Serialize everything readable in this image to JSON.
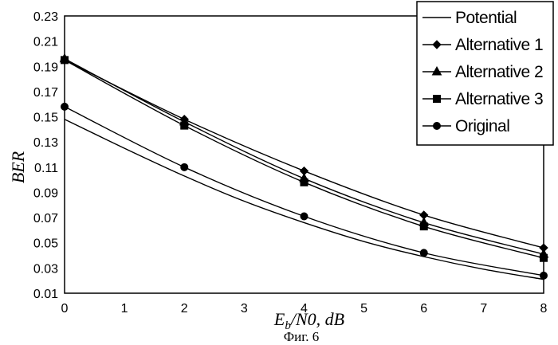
{
  "chart_data": {
    "type": "line",
    "title": "",
    "xlabel_main": "E",
    "xlabel_sub": "b",
    "xlabel_rest": "/N0, dB",
    "ylabel": "BER",
    "caption": "Фиг. 6",
    "xlim": [
      0,
      8
    ],
    "ylim": [
      0.01,
      0.23
    ],
    "xticks": [
      "0",
      "1",
      "2",
      "3",
      "4",
      "5",
      "6",
      "7",
      "8"
    ],
    "yticks": [
      "0.01",
      "0.03",
      "0.05",
      "0.07",
      "0.09",
      "0.11",
      "0.13",
      "0.15",
      "0.17",
      "0.19",
      "0.21",
      "0.23"
    ],
    "grid": true,
    "legend_position": "top-right",
    "series": [
      {
        "name": "Potential",
        "marker": "none",
        "x": [
          0,
          1,
          2,
          3,
          4,
          5,
          6,
          7,
          8
        ],
        "y": [
          0.148,
          0.125,
          0.103,
          0.083,
          0.066,
          0.051,
          0.039,
          0.029,
          0.021
        ]
      },
      {
        "name": "Alternative 1",
        "marker": "diamond",
        "x": [
          0,
          2,
          4,
          6,
          8
        ],
        "y": [
          0.195,
          0.148,
          0.107,
          0.072,
          0.046
        ]
      },
      {
        "name": "Alternative 2",
        "marker": "triangle",
        "x": [
          0,
          2,
          4,
          6,
          8
        ],
        "y": [
          0.196,
          0.146,
          0.101,
          0.066,
          0.041
        ]
      },
      {
        "name": "Alternative 3",
        "marker": "square",
        "x": [
          0,
          2,
          4,
          6,
          8
        ],
        "y": [
          0.195,
          0.143,
          0.098,
          0.063,
          0.038
        ]
      },
      {
        "name": "Original",
        "marker": "circle",
        "x": [
          0,
          2,
          4,
          6,
          8
        ],
        "y": [
          0.158,
          0.11,
          0.071,
          0.042,
          0.024
        ]
      }
    ]
  }
}
